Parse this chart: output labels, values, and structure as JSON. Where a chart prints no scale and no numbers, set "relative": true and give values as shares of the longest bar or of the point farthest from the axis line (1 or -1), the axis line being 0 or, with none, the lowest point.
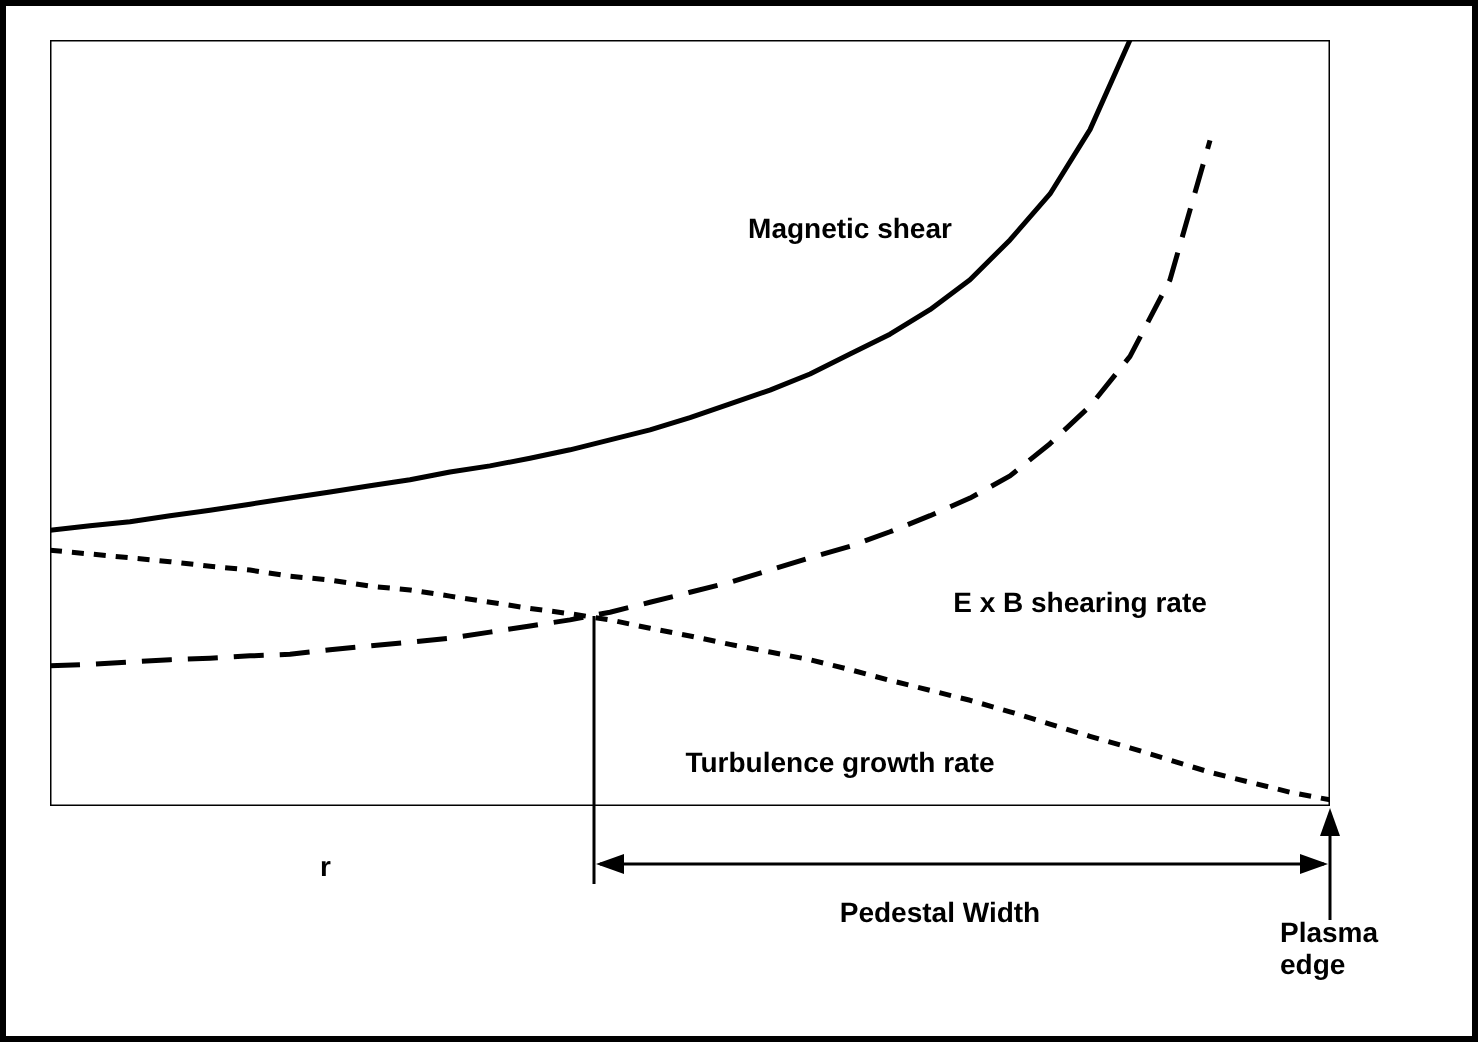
{
  "chart_data": {
    "type": "line",
    "relative": true,
    "categories": [
      null,
      null,
      null,
      null,
      null,
      null,
      null,
      null,
      null,
      null,
      null,
      null,
      null,
      null,
      null,
      null,
      null,
      null,
      null,
      null,
      null,
      null,
      null,
      null,
      null,
      null,
      null,
      null,
      null,
      null,
      null,
      null,
      null
    ],
    "series": [
      {
        "name": "Magnetic shear",
        "color": "#000000",
        "line_style": "solid",
        "values": [
          0.36,
          0.366,
          0.371,
          0.379,
          0.386,
          0.394,
          0.402,
          0.41,
          0.418,
          0.426,
          0.436,
          0.444,
          0.454,
          0.465,
          0.478,
          0.491,
          0.507,
          0.525,
          0.543,
          0.564,
          0.59,
          0.616,
          0.648,
          0.687,
          0.739,
          0.799,
          0.883,
          1.0,
          null,
          null,
          null,
          null,
          null
        ]
      },
      {
        "name": "E x B shearing rate",
        "color": "#000000",
        "line_style": "dashed",
        "values": [
          0.183,
          0.185,
          0.188,
          0.191,
          0.193,
          0.196,
          0.198,
          0.204,
          0.209,
          0.214,
          0.219,
          0.227,
          0.235,
          0.243,
          0.253,
          0.266,
          0.279,
          0.292,
          0.308,
          0.324,
          0.339,
          0.358,
          0.379,
          0.402,
          0.431,
          0.473,
          0.522,
          0.587,
          0.687,
          0.869,
          null,
          null,
          null
        ]
      },
      {
        "name": "Turbulence growth rate",
        "color": "#000000",
        "line_style": "dotted",
        "values": [
          0.334,
          0.329,
          0.324,
          0.319,
          0.313,
          0.308,
          0.3,
          0.295,
          0.287,
          0.282,
          0.274,
          0.266,
          0.258,
          0.251,
          0.243,
          0.232,
          0.222,
          0.211,
          0.201,
          0.191,
          0.178,
          0.164,
          0.151,
          0.138,
          0.123,
          0.107,
          0.091,
          0.076,
          0.06,
          0.044,
          0.031,
          0.018,
          0.008
        ]
      }
    ],
    "annotations": [
      "r",
      "Pedestal Width",
      "Plasma edge"
    ]
  }
}
